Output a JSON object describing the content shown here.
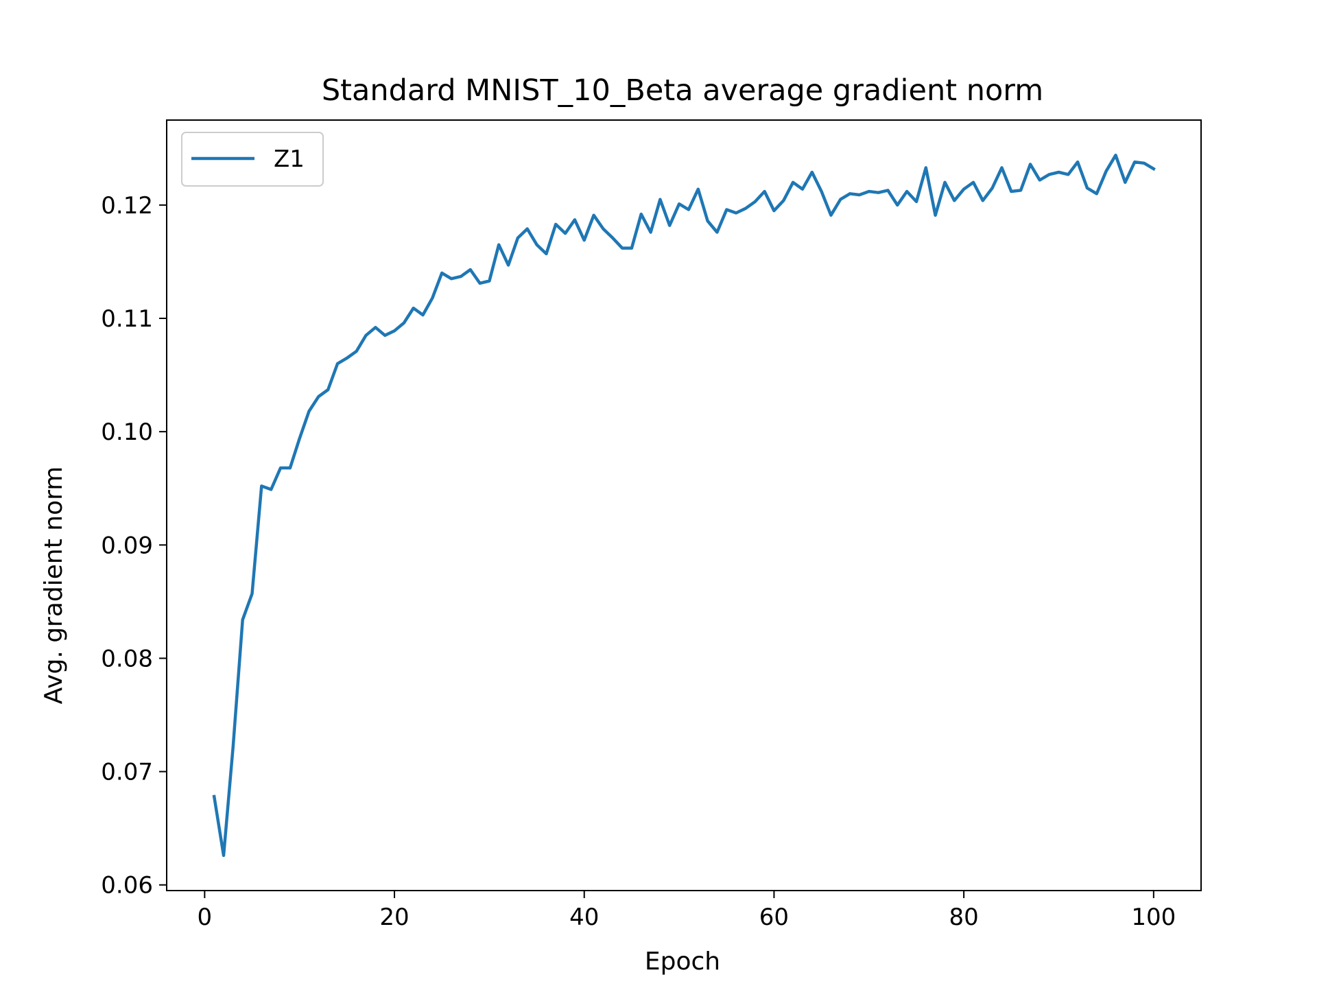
{
  "chart_data": {
    "type": "line",
    "title": "Standard MNIST_10_Beta average gradient norm",
    "xlabel": "Epoch",
    "ylabel": "Avg. gradient norm",
    "xlim": [
      -4,
      105
    ],
    "ylim": [
      0.0595,
      0.1275
    ],
    "xticks": [
      0,
      20,
      40,
      60,
      80,
      100
    ],
    "yticks": [
      0.06,
      0.07,
      0.08,
      0.09,
      0.1,
      0.11,
      0.12
    ],
    "xtick_labels": [
      "0",
      "20",
      "40",
      "60",
      "80",
      "100"
    ],
    "ytick_labels": [
      "0.06",
      "0.07",
      "0.08",
      "0.09",
      "0.10",
      "0.11",
      "0.12"
    ],
    "grid": false,
    "legend_position": "top-left",
    "colors": {
      "series": "#1f77b4",
      "axes": "#000000",
      "legend_border": "#cccccc"
    },
    "series": [
      {
        "name": "Z1",
        "x": [
          1,
          2,
          3,
          4,
          5,
          6,
          7,
          8,
          9,
          10,
          11,
          12,
          13,
          14,
          15,
          16,
          17,
          18,
          19,
          20,
          21,
          22,
          23,
          24,
          25,
          26,
          27,
          28,
          29,
          30,
          31,
          32,
          33,
          34,
          35,
          36,
          37,
          38,
          39,
          40,
          41,
          42,
          43,
          44,
          45,
          46,
          47,
          48,
          49,
          50,
          51,
          52,
          53,
          54,
          55,
          56,
          57,
          58,
          59,
          60,
          61,
          62,
          63,
          64,
          65,
          66,
          67,
          68,
          69,
          70,
          71,
          72,
          73,
          74,
          75,
          76,
          77,
          78,
          79,
          80,
          81,
          82,
          83,
          84,
          85,
          86,
          87,
          88,
          89,
          90,
          91,
          92,
          93,
          94,
          95,
          96,
          97,
          98,
          99,
          100
        ],
        "values": [
          0.0678,
          0.0626,
          0.0722,
          0.0834,
          0.0857,
          0.0952,
          0.0949,
          0.0968,
          0.0968,
          0.0994,
          0.1018,
          0.1031,
          0.1037,
          0.106,
          0.1065,
          0.1071,
          0.1085,
          0.1092,
          0.1085,
          0.1089,
          0.1096,
          0.1109,
          0.1103,
          0.1118,
          0.114,
          0.1135,
          0.1137,
          0.1143,
          0.1131,
          0.1133,
          0.1165,
          0.1147,
          0.1171,
          0.1179,
          0.1165,
          0.1157,
          0.1183,
          0.1175,
          0.1187,
          0.1169,
          0.1191,
          0.1179,
          0.1171,
          0.1162,
          0.1162,
          0.1192,
          0.1176,
          0.1205,
          0.1182,
          0.1201,
          0.1196,
          0.1214,
          0.1186,
          0.1176,
          0.1196,
          0.1193,
          0.1197,
          0.1203,
          0.1212,
          0.1195,
          0.1204,
          0.122,
          0.1214,
          0.1229,
          0.1212,
          0.1191,
          0.1205,
          0.121,
          0.1209,
          0.1212,
          0.1211,
          0.1213,
          0.12,
          0.1212,
          0.1203,
          0.1233,
          0.1191,
          0.122,
          0.1204,
          0.1214,
          0.122,
          0.1204,
          0.1215,
          0.1233,
          0.1212,
          0.1213,
          0.1236,
          0.1222,
          0.1227,
          0.1229,
          0.1227,
          0.1238,
          0.1215,
          0.121,
          0.123,
          0.1244,
          0.122,
          0.1238,
          0.1237,
          0.1232
        ]
      }
    ]
  }
}
